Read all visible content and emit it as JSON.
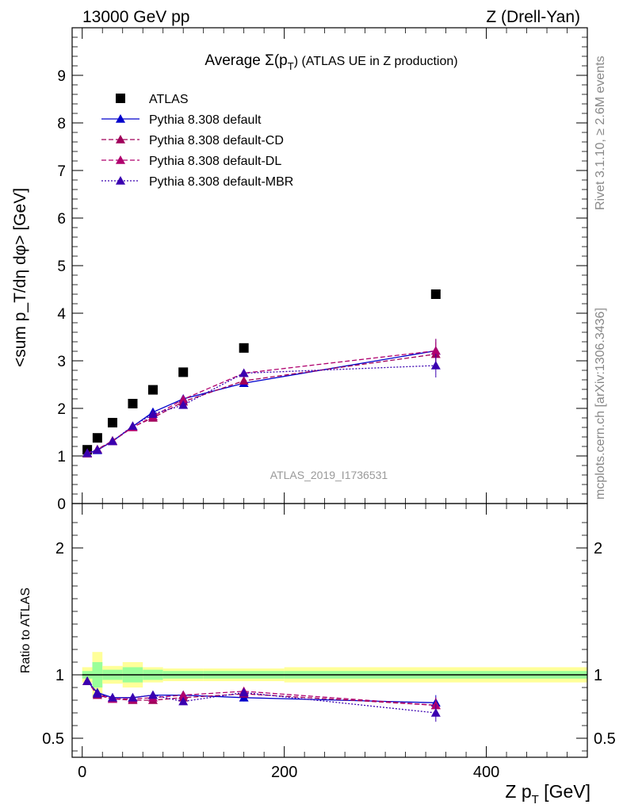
{
  "header": {
    "energy": "13000 GeV pp",
    "process": "Z (Drell-Yan)"
  },
  "side_labels": {
    "rivet": "Rivet 3.1.10, ≥ 2.6M events",
    "mcplots": "mcplots.cern.ch [arXiv:1306.3436]"
  },
  "analysis_id": "ATLAS_2019_I1736531",
  "colors": {
    "atlas": "#000000",
    "default": "#0000cc",
    "cd": "#a0005a",
    "dl": "#b0006e",
    "mbr": "#3a00b0",
    "band_yellow": "#ffff99",
    "band_green": "#99ff99"
  },
  "chart_data": [
    {
      "type": "line",
      "panel": "main",
      "title": "Average Σ(p_T) (ATLAS UE in Z production)",
      "title_parts": {
        "prefix": "Average ",
        "sym": "Σ(p",
        "sub": "T",
        "suffix": ") (ATLAS UE in Z production)"
      },
      "ylabel": "<sum p_T/dη dφ> [GeV]",
      "xlim": [
        -10,
        500
      ],
      "ylim": [
        0,
        10
      ],
      "yticks": [
        "0",
        "1",
        "2",
        "3",
        "4",
        "5",
        "6",
        "7",
        "8",
        "9"
      ],
      "legend_position": "top-left",
      "x": [
        5,
        15,
        30,
        50,
        70,
        100,
        160,
        350
      ],
      "series": [
        {
          "name": "ATLAS",
          "marker": "square",
          "values": [
            1.13,
            1.38,
            1.7,
            2.1,
            2.39,
            2.76,
            3.27,
            4.4
          ]
        },
        {
          "name": "Pythia 8.308 default",
          "marker": "triangle",
          "style": "solid",
          "values": [
            1.05,
            1.12,
            1.31,
            1.62,
            1.92,
            2.2,
            2.53,
            3.21
          ],
          "errors": [
            0.02,
            0.02,
            0.02,
            0.03,
            0.04,
            0.06,
            0.08,
            0.25
          ]
        },
        {
          "name": "Pythia 8.308 default-CD",
          "marker": "triangle",
          "style": "dashed",
          "values": [
            1.06,
            1.14,
            1.32,
            1.61,
            1.8,
            2.14,
            2.58,
            3.14
          ],
          "errors": [
            0.02,
            0.02,
            0.02,
            0.03,
            0.04,
            0.06,
            0.08,
            0.25
          ]
        },
        {
          "name": "Pythia 8.308 default-DL",
          "marker": "triangle",
          "style": "dashed",
          "values": [
            1.05,
            1.13,
            1.31,
            1.6,
            1.83,
            2.19,
            2.74,
            3.21
          ],
          "errors": [
            0.02,
            0.02,
            0.02,
            0.03,
            0.04,
            0.06,
            0.08,
            0.25
          ]
        },
        {
          "name": "Pythia 8.308 default-MBR",
          "marker": "triangle",
          "style": "dotted",
          "values": [
            1.06,
            1.13,
            1.31,
            1.63,
            1.88,
            2.07,
            2.74,
            2.9
          ],
          "errors": [
            0.02,
            0.02,
            0.02,
            0.03,
            0.04,
            0.06,
            0.08,
            0.25
          ]
        }
      ]
    },
    {
      "type": "line",
      "panel": "ratio",
      "ylabel": "Ratio to ATLAS",
      "xlabel": "Z p_T [GeV]",
      "xlabel_parts": {
        "main": "Z p",
        "sub": "T",
        "suffix": " [GeV]"
      },
      "xlim": [
        -10,
        500
      ],
      "ylim": [
        0.35,
        2.35
      ],
      "xticks": [
        "0",
        "200",
        "400"
      ],
      "yticks": [
        "0.5",
        "1",
        "2"
      ],
      "x": [
        5,
        15,
        30,
        50,
        70,
        100,
        160,
        350
      ],
      "bands": {
        "edges": [
          0,
          10,
          20,
          40,
          60,
          80,
          120,
          200,
          500
        ],
        "yellow_halfwidth": [
          0.06,
          0.18,
          0.07,
          0.1,
          0.06,
          0.05,
          0.05,
          0.06
        ],
        "green_halfwidth": [
          0.03,
          0.1,
          0.04,
          0.06,
          0.04,
          0.03,
          0.03,
          0.03
        ]
      },
      "series": [
        {
          "name": "Pythia 8.308 default",
          "values": [
            0.95,
            0.86,
            0.82,
            0.82,
            0.84,
            0.84,
            0.82,
            0.78
          ],
          "errors": [
            0.01,
            0.01,
            0.01,
            0.015,
            0.02,
            0.025,
            0.03,
            0.06
          ]
        },
        {
          "name": "Pythia 8.308 default-CD",
          "values": [
            0.95,
            0.84,
            0.81,
            0.8,
            0.8,
            0.82,
            0.85,
            0.76
          ],
          "errors": [
            0.01,
            0.01,
            0.01,
            0.015,
            0.02,
            0.025,
            0.03,
            0.06
          ]
        },
        {
          "name": "Pythia 8.308 default-DL",
          "values": [
            0.95,
            0.85,
            0.81,
            0.81,
            0.82,
            0.84,
            0.87,
            0.76
          ],
          "errors": [
            0.01,
            0.01,
            0.01,
            0.015,
            0.02,
            0.025,
            0.03,
            0.06
          ]
        },
        {
          "name": "Pythia 8.308 default-MBR",
          "values": [
            0.95,
            0.85,
            0.82,
            0.82,
            0.84,
            0.79,
            0.86,
            0.7
          ],
          "errors": [
            0.01,
            0.01,
            0.01,
            0.015,
            0.02,
            0.025,
            0.03,
            0.07
          ]
        }
      ]
    }
  ]
}
